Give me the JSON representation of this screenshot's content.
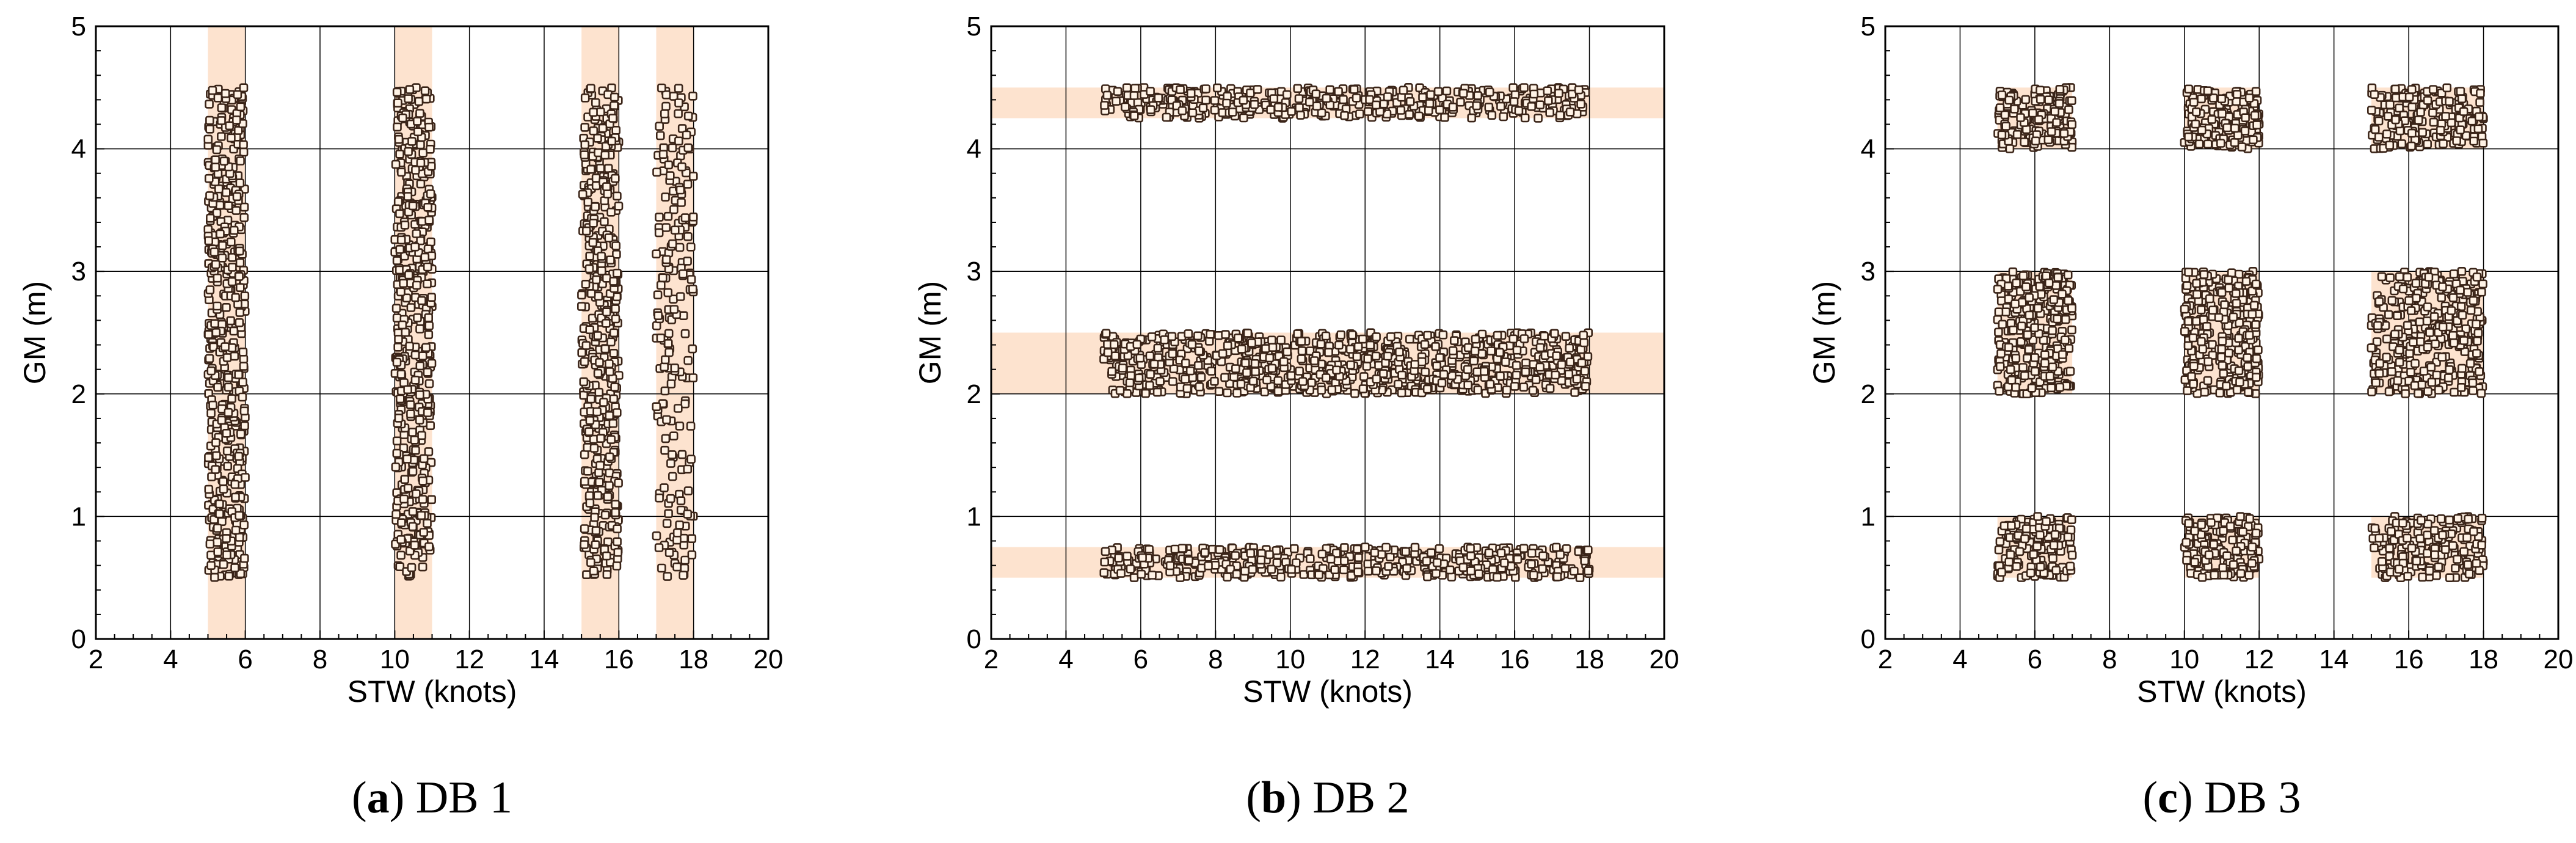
{
  "chart_data": [
    {
      "type": "scatter",
      "caption": {
        "label": "a",
        "text": "DB 1"
      },
      "xlabel": "STW (knots)",
      "ylabel": "GM (m)",
      "xlim": [
        2,
        20
      ],
      "ylim": [
        0,
        5
      ],
      "xticks": [
        "2",
        "4",
        "6",
        "8",
        "10",
        "12",
        "14",
        "16",
        "18",
        "20"
      ],
      "yticks": [
        "0",
        "1",
        "2",
        "3",
        "4",
        "5"
      ],
      "grid": true,
      "legend": "none",
      "shaded_regions": [
        {
          "x": [
            5,
            6
          ],
          "y": [
            0,
            5
          ]
        },
        {
          "x": [
            10,
            11
          ],
          "y": [
            0,
            5
          ]
        },
        {
          "x": [
            15,
            16
          ],
          "y": [
            0,
            5
          ]
        },
        {
          "x": [
            17,
            18
          ],
          "y": [
            0,
            5
          ]
        }
      ],
      "sample_clusters": [
        {
          "x": [
            5,
            6
          ],
          "y": [
            0.5,
            4.5
          ],
          "count": 500
        },
        {
          "x": [
            10,
            11
          ],
          "y": [
            0.5,
            4.5
          ],
          "count": 500
        },
        {
          "x": [
            15,
            16
          ],
          "y": [
            0.5,
            4.5
          ],
          "count": 450
        },
        {
          "x": [
            17,
            18
          ],
          "y": [
            0.5,
            4.5
          ],
          "count": 200
        }
      ]
    },
    {
      "type": "scatter",
      "caption": {
        "label": "b",
        "text": "DB 2"
      },
      "xlabel": "STW (knots)",
      "ylabel": "GM (m)",
      "xlim": [
        2,
        20
      ],
      "ylim": [
        0,
        5
      ],
      "xticks": [
        "2",
        "4",
        "6",
        "8",
        "10",
        "12",
        "14",
        "16",
        "18",
        "20"
      ],
      "yticks": [
        "0",
        "1",
        "2",
        "3",
        "4",
        "5"
      ],
      "grid": true,
      "legend": "none",
      "shaded_regions": [
        {
          "x": [
            2,
            20
          ],
          "y": [
            4.25,
            4.5
          ]
        },
        {
          "x": [
            2,
            20
          ],
          "y": [
            2.0,
            2.5
          ]
        },
        {
          "x": [
            2,
            20
          ],
          "y": [
            0.5,
            0.75
          ]
        }
      ],
      "sample_clusters": [
        {
          "x": [
            5,
            18
          ],
          "y": [
            4.25,
            4.5
          ],
          "count": 450
        },
        {
          "x": [
            5,
            18
          ],
          "y": [
            2.0,
            2.5
          ],
          "count": 900
        },
        {
          "x": [
            5,
            18
          ],
          "y": [
            0.5,
            0.75
          ],
          "count": 450
        }
      ]
    },
    {
      "type": "scatter",
      "caption": {
        "label": "c",
        "text": "DB 3"
      },
      "xlabel": "STW (knots)",
      "ylabel": "GM (m)",
      "xlim": [
        2,
        20
      ],
      "ylim": [
        0,
        5
      ],
      "xticks": [
        "2",
        "4",
        "6",
        "8",
        "10",
        "12",
        "14",
        "16",
        "18",
        "20"
      ],
      "yticks": [
        "0",
        "1",
        "2",
        "3",
        "4",
        "5"
      ],
      "grid": true,
      "legend": "none",
      "shaded_regions": [
        {
          "x": [
            5,
            7
          ],
          "y": [
            4.0,
            4.5
          ]
        },
        {
          "x": [
            10,
            12
          ],
          "y": [
            4.0,
            4.5
          ]
        },
        {
          "x": [
            15,
            18
          ],
          "y": [
            4.0,
            4.5
          ]
        },
        {
          "x": [
            5,
            7
          ],
          "y": [
            2.0,
            3.0
          ]
        },
        {
          "x": [
            10,
            12
          ],
          "y": [
            2.0,
            3.0
          ]
        },
        {
          "x": [
            15,
            18
          ],
          "y": [
            2.0,
            3.0
          ]
        },
        {
          "x": [
            5,
            7
          ],
          "y": [
            0.5,
            1.0
          ]
        },
        {
          "x": [
            10,
            12
          ],
          "y": [
            0.5,
            1.0
          ]
        },
        {
          "x": [
            15,
            18
          ],
          "y": [
            0.5,
            1.0
          ]
        }
      ],
      "sample_clusters": [
        {
          "x": [
            5,
            7
          ],
          "y": [
            4.0,
            4.5
          ],
          "count": 170
        },
        {
          "x": [
            10,
            12
          ],
          "y": [
            4.0,
            4.5
          ],
          "count": 170
        },
        {
          "x": [
            15,
            18
          ],
          "y": [
            4.0,
            4.5
          ],
          "count": 200
        },
        {
          "x": [
            5,
            7
          ],
          "y": [
            2.0,
            3.0
          ],
          "count": 330
        },
        {
          "x": [
            10,
            12
          ],
          "y": [
            2.0,
            3.0
          ],
          "count": 330
        },
        {
          "x": [
            15,
            18
          ],
          "y": [
            2.0,
            3.0
          ],
          "count": 380
        },
        {
          "x": [
            5,
            7
          ],
          "y": [
            0.5,
            1.0
          ],
          "count": 170
        },
        {
          "x": [
            10,
            12
          ],
          "y": [
            0.5,
            1.0
          ],
          "count": 170
        },
        {
          "x": [
            15,
            18
          ],
          "y": [
            0.5,
            1.0
          ],
          "count": 200
        }
      ]
    }
  ],
  "colors": {
    "shade": "#fde3cf",
    "marker_fill": "#fff3e6",
    "marker_edge": "#3a2418",
    "grid": "#000000",
    "axis": "#000000"
  }
}
